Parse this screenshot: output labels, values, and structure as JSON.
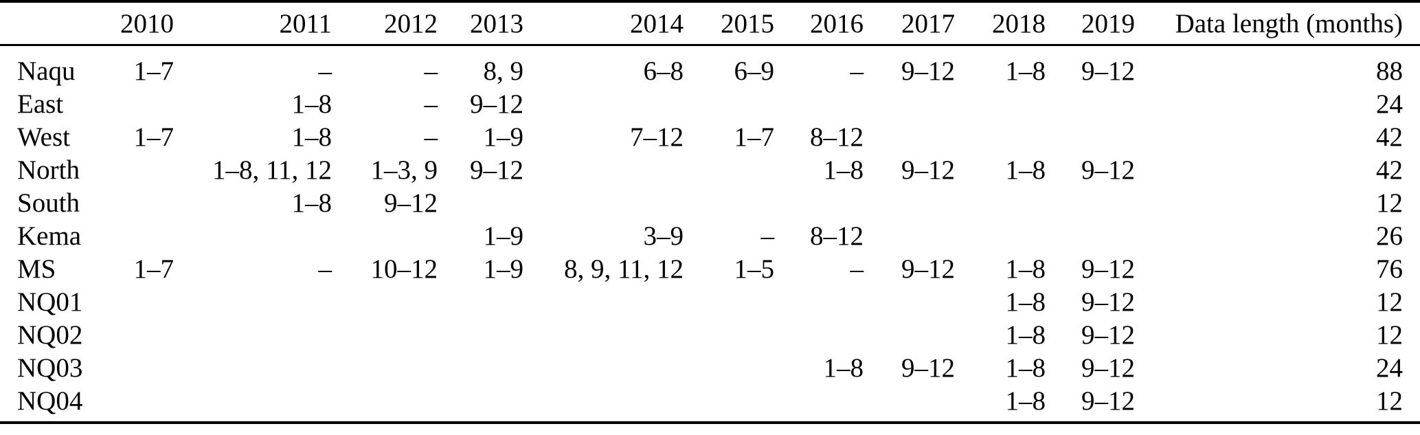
{
  "table": {
    "columns": [
      "",
      "2010",
      "2011",
      "2012",
      "2013",
      "2014",
      "2015",
      "2016",
      "2017",
      "2018",
      "2019",
      "Data length (months)"
    ],
    "rows": [
      {
        "station": "Naqu",
        "cells": [
          "1–7",
          "–",
          "–",
          "8, 9",
          "6–8",
          "6–9",
          "–",
          "9–12",
          "1–8",
          "9–12"
        ],
        "data_length": "88"
      },
      {
        "station": "East",
        "cells": [
          "",
          "1–8",
          "–",
          "9–12",
          "",
          "",
          "",
          "",
          "",
          ""
        ],
        "data_length": "24"
      },
      {
        "station": "West",
        "cells": [
          "1–7",
          "1–8",
          "–",
          "1–9",
          "7–12",
          "1–7",
          "8–12",
          "",
          "",
          ""
        ],
        "data_length": "42"
      },
      {
        "station": "North",
        "cells": [
          "",
          "1–8, 11, 12",
          "1–3, 9",
          "9–12",
          "",
          "",
          "1–8",
          "9–12",
          "1–8",
          "9–12"
        ],
        "data_length": "42"
      },
      {
        "station": "South",
        "cells": [
          "",
          "1–8",
          "9–12",
          "",
          "",
          "",
          "",
          "",
          "",
          ""
        ],
        "data_length": "12"
      },
      {
        "station": "Kema",
        "cells": [
          "",
          "",
          "",
          "1–9",
          "3–9",
          "–",
          "8–12",
          "",
          "",
          ""
        ],
        "data_length": "26"
      },
      {
        "station": "MS",
        "cells": [
          "1–7",
          "–",
          "10–12",
          "1–9",
          "8, 9, 11, 12",
          "1–5",
          "–",
          "9–12",
          "1–8",
          "9–12"
        ],
        "data_length": "76"
      },
      {
        "station": "NQ01",
        "cells": [
          "",
          "",
          "",
          "",
          "",
          "",
          "",
          "",
          "1–8",
          "9–12"
        ],
        "data_length": "12"
      },
      {
        "station": "NQ02",
        "cells": [
          "",
          "",
          "",
          "",
          "",
          "",
          "",
          "",
          "1–8",
          "9–12"
        ],
        "data_length": "12"
      },
      {
        "station": "NQ03",
        "cells": [
          "",
          "",
          "",
          "",
          "",
          "",
          "1–8",
          "9–12",
          "1–8",
          "9–12"
        ],
        "data_length": "24"
      },
      {
        "station": "NQ04",
        "cells": [
          "",
          "",
          "",
          "",
          "",
          "",
          "",
          "",
          "1–8",
          "9–12"
        ],
        "data_length": "12"
      }
    ]
  },
  "colors": {
    "text": "#000000",
    "background": "#ffffff",
    "rule": "#000000"
  }
}
